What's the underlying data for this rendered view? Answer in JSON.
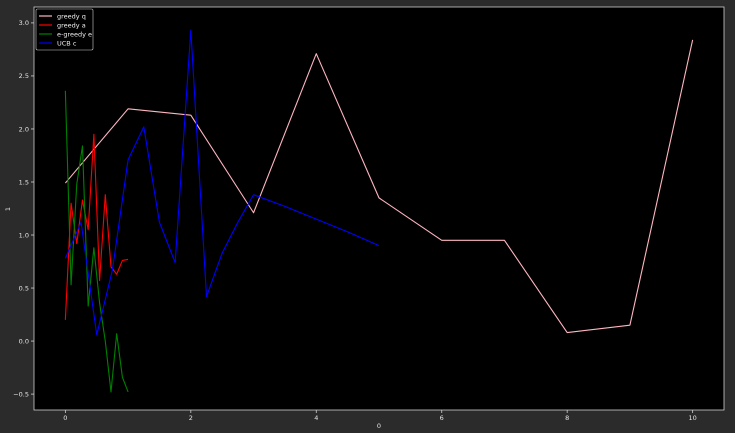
{
  "chart_data": {
    "type": "line",
    "xlabel": "0",
    "ylabel": "1",
    "xlim": [
      -0.5,
      10.5
    ],
    "ylim": [
      -0.65,
      3.15
    ],
    "x_ticks": [
      0,
      2,
      4,
      6,
      8,
      10
    ],
    "x_tick_labels": [
      "0",
      "2",
      "4",
      "6",
      "8",
      "10"
    ],
    "y_ticks": [
      -0.5,
      0.0,
      0.5,
      1.0,
      1.5,
      2.0,
      2.5,
      3.0
    ],
    "y_tick_labels": [
      "−0.5",
      "0.0",
      "0.5",
      "1.0",
      "1.5",
      "2.0",
      "2.5",
      "3.0"
    ],
    "grid": false,
    "legend_position": "top-left",
    "background": "#000000",
    "series": [
      {
        "name": "greedy q",
        "color": "#ffb6c1",
        "x": [
          0,
          1,
          2,
          3,
          4,
          5,
          6,
          7,
          8,
          9,
          10
        ],
        "y": [
          1.49,
          2.19,
          2.13,
          1.21,
          2.71,
          1.35,
          0.95,
          0.95,
          0.08,
          0.15,
          2.84
        ]
      },
      {
        "name": "greedy a",
        "color": "#ff0000",
        "x": [
          0,
          0.0909,
          0.1818,
          0.2727,
          0.3636,
          0.4545,
          0.5455,
          0.6364,
          0.7273,
          0.8182,
          0.9091,
          1.0
        ],
        "y": [
          0.2,
          1.3,
          0.92,
          1.33,
          1.05,
          1.95,
          0.57,
          1.38,
          0.7,
          0.63,
          0.76,
          0.77
        ]
      },
      {
        "name": "e-greedy e",
        "color": "#008000",
        "x": [
          0,
          0.0909,
          0.1818,
          0.2727,
          0.3636,
          0.4545,
          0.5455,
          0.6364,
          0.7273,
          0.8182,
          0.9091,
          1.0
        ],
        "y": [
          2.36,
          0.53,
          1.48,
          1.84,
          0.33,
          0.88,
          0.36,
          0.0,
          -0.48,
          0.07,
          -0.34,
          -0.48
        ]
      },
      {
        "name": "UCB c",
        "color": "#0000ff",
        "x": [
          0,
          0.25,
          0.5,
          0.75,
          1.0,
          1.25,
          1.5,
          1.75,
          2.0,
          2.25,
          2.5,
          2.75,
          3.0,
          3.5,
          4.0,
          4.5,
          5.0
        ],
        "y": [
          0.78,
          1.12,
          0.06,
          0.67,
          1.71,
          2.02,
          1.12,
          0.74,
          2.93,
          0.42,
          0.83,
          1.12,
          1.38,
          1.27,
          1.15,
          1.03,
          0.9
        ]
      }
    ]
  }
}
